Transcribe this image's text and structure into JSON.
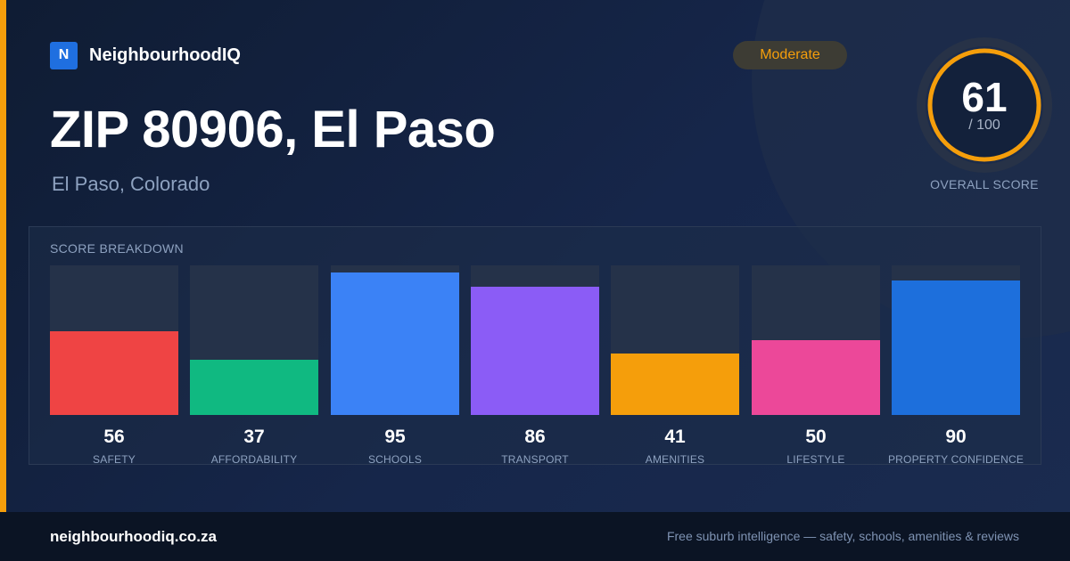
{
  "brand": {
    "logo_letter": "N",
    "name": "NeighbourhoodIQ"
  },
  "header": {
    "title": "ZIP 80906, El Paso",
    "subtitle": "El Paso, Colorado",
    "badge": "Moderate"
  },
  "score": {
    "value": "61",
    "max": "/ 100",
    "label": "OVERALL SCORE",
    "fraction": 0.61
  },
  "colors": {
    "accent": "#f59e0b",
    "track": "#253249"
  },
  "chart_data": {
    "type": "bar",
    "title": "SCORE BREAKDOWN",
    "ylim": [
      0,
      100
    ],
    "categories": [
      "SAFETY",
      "AFFORDABILITY",
      "SCHOOLS",
      "TRANSPORT",
      "AMENITIES",
      "LIFESTYLE",
      "PROPERTY CONFIDENCE"
    ],
    "values": [
      56,
      37,
      95,
      86,
      41,
      50,
      90
    ],
    "colors": [
      "#ef4444",
      "#10b981",
      "#3b82f6",
      "#8b5cf6",
      "#f59e0b",
      "#ec4899",
      "#1d6fdc"
    ]
  },
  "footer": {
    "site": "neighbourhoodiq.co.za",
    "tagline": "Free suburb intelligence — safety, schools, amenities & reviews"
  }
}
